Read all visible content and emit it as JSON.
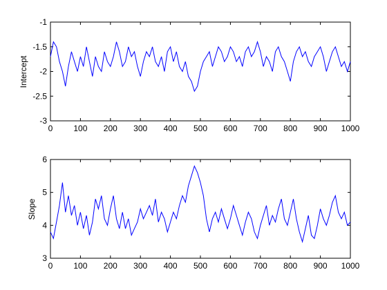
{
  "chart_data": [
    {
      "type": "line",
      "title": "",
      "xlabel": "",
      "ylabel": "Intercept",
      "xlim": [
        0,
        1000
      ],
      "ylim": [
        -3,
        -1
      ],
      "xticks": [
        0,
        100,
        200,
        300,
        400,
        500,
        600,
        700,
        800,
        900,
        1000
      ],
      "xtick_labels": [
        "0",
        "100",
        "200",
        "300",
        "400",
        "500",
        "600",
        "700",
        "800",
        "900",
        "1000"
      ],
      "yticks": [
        -3,
        -2.5,
        -2,
        -1.5,
        -1
      ],
      "ytick_labels": [
        "-3",
        "-2.5",
        "-2",
        "-1.5",
        "-1"
      ],
      "grid": false,
      "color": "#0000ff",
      "series": [
        {
          "x": [
            0,
            10,
            20,
            30,
            40,
            50,
            60,
            70,
            80,
            90,
            100,
            110,
            120,
            130,
            140,
            150,
            160,
            170,
            180,
            190,
            200,
            210,
            220,
            230,
            240,
            250,
            260,
            270,
            280,
            290,
            300,
            310,
            320,
            330,
            340,
            350,
            360,
            370,
            380,
            390,
            400,
            410,
            420,
            430,
            440,
            450,
            460,
            470,
            480,
            490,
            500,
            510,
            520,
            530,
            540,
            550,
            560,
            570,
            580,
            590,
            600,
            610,
            620,
            630,
            640,
            650,
            660,
            670,
            680,
            690,
            700,
            710,
            720,
            730,
            740,
            750,
            760,
            770,
            780,
            790,
            800,
            810,
            820,
            830,
            840,
            850,
            860,
            870,
            880,
            890,
            900,
            910,
            920,
            930,
            940,
            950,
            960,
            970,
            980,
            990,
            1000
          ],
          "y": [
            -1.7,
            -1.4,
            -1.5,
            -1.8,
            -2.0,
            -2.3,
            -1.9,
            -1.6,
            -1.8,
            -2.0,
            -1.7,
            -1.9,
            -1.5,
            -1.8,
            -2.1,
            -1.7,
            -1.9,
            -2.0,
            -1.6,
            -1.8,
            -1.9,
            -1.7,
            -1.4,
            -1.6,
            -1.9,
            -1.8,
            -1.5,
            -1.7,
            -1.6,
            -1.9,
            -2.1,
            -1.8,
            -1.6,
            -1.7,
            -1.5,
            -1.8,
            -1.9,
            -1.7,
            -2.0,
            -1.6,
            -1.5,
            -1.8,
            -1.6,
            -1.9,
            -2.0,
            -1.8,
            -2.1,
            -2.2,
            -2.4,
            -2.3,
            -2.0,
            -1.8,
            -1.7,
            -1.6,
            -1.9,
            -1.7,
            -1.5,
            -1.6,
            -1.8,
            -1.7,
            -1.5,
            -1.6,
            -1.8,
            -1.7,
            -1.9,
            -1.6,
            -1.5,
            -1.7,
            -1.6,
            -1.4,
            -1.6,
            -1.9,
            -1.7,
            -1.8,
            -2.0,
            -1.6,
            -1.5,
            -1.7,
            -1.8,
            -2.0,
            -2.2,
            -1.8,
            -1.6,
            -1.5,
            -1.7,
            -1.6,
            -1.8,
            -1.9,
            -1.7,
            -1.6,
            -1.5,
            -1.7,
            -2.0,
            -1.8,
            -1.6,
            -1.5,
            -1.7,
            -1.9,
            -1.8,
            -2.0,
            -1.8
          ]
        }
      ]
    },
    {
      "type": "line",
      "title": "",
      "xlabel": "",
      "ylabel": "Slope",
      "xlim": [
        0,
        1000
      ],
      "ylim": [
        3,
        6
      ],
      "xticks": [
        0,
        100,
        200,
        300,
        400,
        500,
        600,
        700,
        800,
        900,
        1000
      ],
      "xtick_labels": [
        "0",
        "100",
        "200",
        "300",
        "400",
        "500",
        "600",
        "700",
        "800",
        "900",
        "1000"
      ],
      "yticks": [
        3,
        4,
        5,
        6
      ],
      "ytick_labels": [
        "3",
        "4",
        "5",
        "6"
      ],
      "grid": false,
      "color": "#0000ff",
      "series": [
        {
          "x": [
            0,
            10,
            20,
            30,
            40,
            50,
            60,
            70,
            80,
            90,
            100,
            110,
            120,
            130,
            140,
            150,
            160,
            170,
            180,
            190,
            200,
            210,
            220,
            230,
            240,
            250,
            260,
            270,
            280,
            290,
            300,
            310,
            320,
            330,
            340,
            350,
            360,
            370,
            380,
            390,
            400,
            410,
            420,
            430,
            440,
            450,
            460,
            470,
            480,
            490,
            500,
            510,
            520,
            530,
            540,
            550,
            560,
            570,
            580,
            590,
            600,
            610,
            620,
            630,
            640,
            650,
            660,
            670,
            680,
            690,
            700,
            710,
            720,
            730,
            740,
            750,
            760,
            770,
            780,
            790,
            800,
            810,
            820,
            830,
            840,
            850,
            860,
            870,
            880,
            890,
            900,
            910,
            920,
            930,
            940,
            950,
            960,
            970,
            980,
            990,
            1000
          ],
          "y": [
            3.8,
            3.6,
            4.1,
            4.6,
            5.3,
            4.4,
            4.9,
            4.3,
            4.6,
            4.0,
            4.4,
            3.9,
            4.3,
            3.7,
            4.1,
            4.8,
            4.5,
            4.9,
            4.2,
            4.0,
            4.5,
            4.9,
            4.2,
            3.9,
            4.4,
            3.9,
            4.2,
            3.7,
            3.9,
            4.1,
            4.5,
            4.2,
            4.4,
            4.6,
            4.3,
            4.8,
            4.1,
            4.4,
            4.2,
            3.8,
            4.1,
            4.4,
            4.2,
            4.6,
            4.9,
            4.7,
            5.2,
            5.5,
            5.8,
            5.6,
            5.3,
            4.9,
            4.2,
            3.8,
            4.2,
            4.4,
            4.1,
            4.5,
            4.2,
            3.9,
            4.2,
            4.6,
            4.3,
            4.0,
            3.7,
            4.1,
            4.4,
            4.2,
            3.8,
            3.6,
            4.0,
            4.3,
            4.6,
            4.0,
            4.3,
            4.1,
            4.5,
            4.8,
            4.2,
            4.0,
            4.4,
            4.8,
            4.2,
            3.8,
            3.5,
            3.9,
            4.3,
            3.7,
            3.6,
            4.0,
            4.5,
            4.2,
            4.0,
            4.3,
            4.7,
            4.9,
            4.4,
            4.2,
            4.4,
            4.0,
            4.1
          ]
        }
      ]
    }
  ]
}
